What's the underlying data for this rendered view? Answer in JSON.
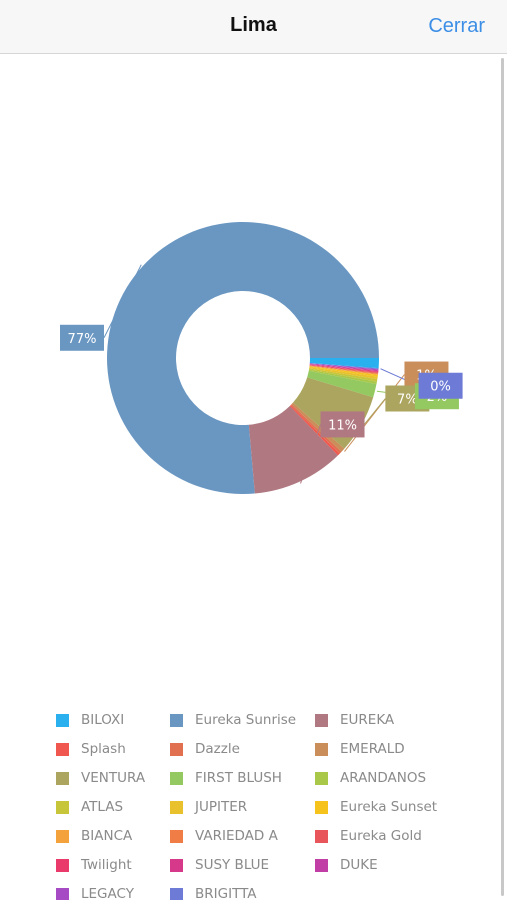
{
  "navbar": {
    "title": "Lima",
    "close_label": "Cerrar"
  },
  "colors": {
    "navbar_bg": "#f7f7f7",
    "accent": "#3c8ee6"
  },
  "chart_data": {
    "type": "pie",
    "title": "",
    "hole": true,
    "legend_position": "bottom",
    "slices": [
      {
        "label": "Eureka Sunrise",
        "value": 77,
        "color": "#6a97c2",
        "display": "77%"
      },
      {
        "label": "EUREKA",
        "value": 11,
        "color": "#b07881",
        "display": "11%"
      },
      {
        "label": "Splash",
        "value": 0.3,
        "color": "#f0574e",
        "display": ""
      },
      {
        "label": "Dazzle",
        "value": 0.3,
        "color": "#e07050",
        "display": ""
      },
      {
        "label": "EMERALD",
        "value": 0.5,
        "color": "#c98e5a",
        "display": "1%"
      },
      {
        "label": "VENTURA",
        "value": 7,
        "color": "#aba55f",
        "display": "7%"
      },
      {
        "label": "FIRST BLUSH",
        "value": 1.6,
        "color": "#93c960",
        "display": "2%"
      },
      {
        "label": "ARANDANOS",
        "value": 0.3,
        "color": "#a9c84a",
        "display": ""
      },
      {
        "label": "ATLAS",
        "value": 0.3,
        "color": "#c7c53a",
        "display": ""
      },
      {
        "label": "JUPITER",
        "value": 0.3,
        "color": "#e8c12c",
        "display": ""
      },
      {
        "label": "Eureka Sunset",
        "value": 0.2,
        "color": "#f6c21c",
        "display": ""
      },
      {
        "label": "BIANCA",
        "value": 0.1,
        "color": "#f4a33c",
        "display": ""
      },
      {
        "label": "VARIEDAD A",
        "value": 0.1,
        "color": "#f07d45",
        "display": ""
      },
      {
        "label": "Eureka Gold",
        "value": 0.1,
        "color": "#e8555a",
        "display": ""
      },
      {
        "label": "Twilight",
        "value": 0.1,
        "color": "#ea3a6b",
        "display": ""
      },
      {
        "label": "SUSY BLUE",
        "value": 0.1,
        "color": "#d6398a",
        "display": ""
      },
      {
        "label": "DUKE",
        "value": 0.1,
        "color": "#c13ea6",
        "display": ""
      },
      {
        "label": "LEGACY",
        "value": 0.1,
        "color": "#a64bc4",
        "display": ""
      },
      {
        "label": "BRIGITTA",
        "value": 0.1,
        "color": "#6d7bd6",
        "display": "0%"
      },
      {
        "label": "BILOXI",
        "value": 1.2,
        "color": "#2ab0ee",
        "display": ""
      }
    ]
  },
  "legend": [
    {
      "label": "BILOXI",
      "color": "#2ab0ee"
    },
    {
      "label": "Eureka Sunrise",
      "color": "#6a97c2"
    },
    {
      "label": "EUREKA",
      "color": "#b07881"
    },
    {
      "label": "Splash",
      "color": "#f0574e"
    },
    {
      "label": "Dazzle",
      "color": "#e07050"
    },
    {
      "label": "EMERALD",
      "color": "#c98e5a"
    },
    {
      "label": "VENTURA",
      "color": "#aba55f"
    },
    {
      "label": "FIRST BLUSH",
      "color": "#93c960"
    },
    {
      "label": "ARANDANOS",
      "color": "#a9c84a"
    },
    {
      "label": "ATLAS",
      "color": "#c7c53a"
    },
    {
      "label": "JUPITER",
      "color": "#e8c12c"
    },
    {
      "label": "Eureka Sunset",
      "color": "#f6c21c"
    },
    {
      "label": "BIANCA",
      "color": "#f4a33c"
    },
    {
      "label": "VARIEDAD A",
      "color": "#f07d45"
    },
    {
      "label": "Eureka Gold",
      "color": "#e8555a"
    },
    {
      "label": "Twilight",
      "color": "#ea3a6b"
    },
    {
      "label": "SUSY BLUE",
      "color": "#d6398a"
    },
    {
      "label": "DUKE",
      "color": "#c13ea6"
    },
    {
      "label": "LEGACY",
      "color": "#a64bc4"
    },
    {
      "label": "BRIGITTA",
      "color": "#6d7bd6"
    }
  ]
}
